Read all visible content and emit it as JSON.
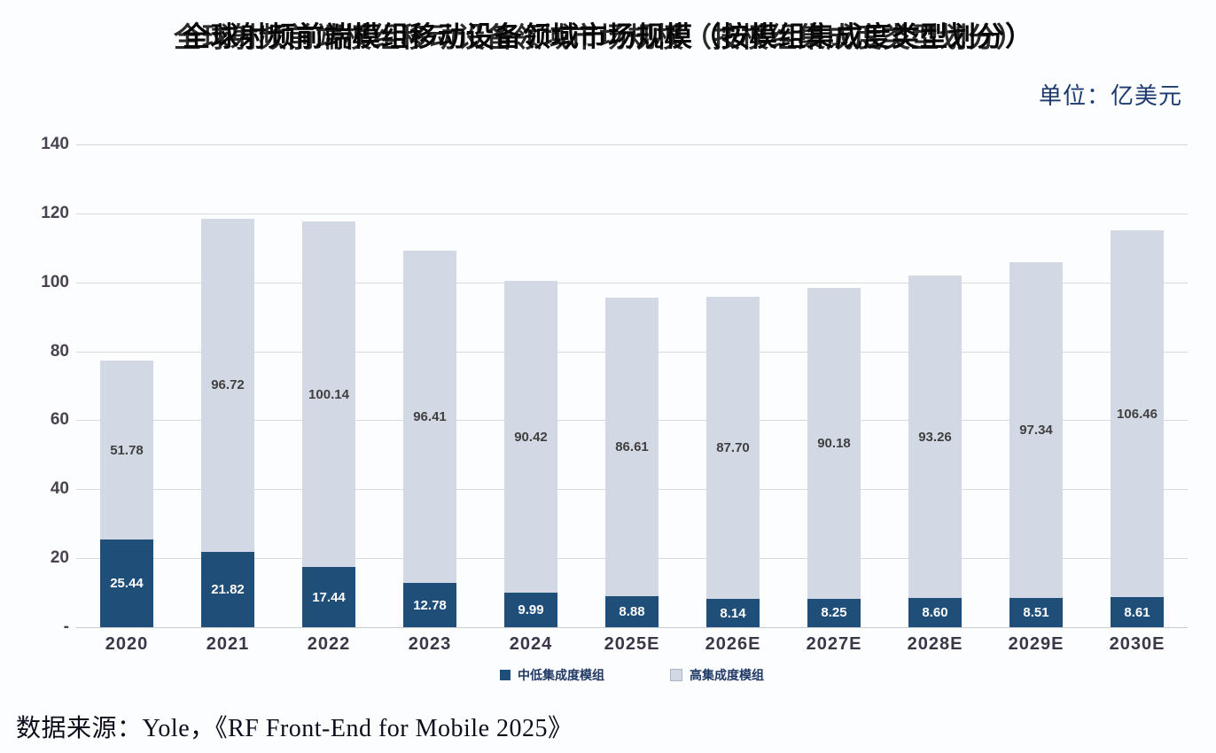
{
  "title": "全球射频前端模组移动设备领域市场规模（按模组集成度类型划分）",
  "unit_label": "单位：亿美元",
  "source_note": "数据来源：Yole，《RF Front-End for Mobile 2025》",
  "colors": {
    "background": "#FCFDFE",
    "dark_series": "#1F4E79",
    "light_series": "#D3D9E4",
    "gridline": "#D9D9D9",
    "axis_line": "#C6CAD1",
    "y_tick_text": "#48434F",
    "x_tick_text": "#3C3649",
    "legend_text": "#1F3864",
    "unit_text": "#1C3A6E",
    "title_text": "#060606"
  },
  "chart_data": {
    "type": "bar",
    "stacked": true,
    "title": "全球射频前端模组移动设备领域市场规模（按模组集成度类型划分）",
    "unit": "亿美元",
    "categories": [
      "2020",
      "2021",
      "2022",
      "2023",
      "2024",
      "2025E",
      "2026E",
      "2027E",
      "2028E",
      "2029E",
      "2030E"
    ],
    "series": [
      {
        "name": "中低集成度模组",
        "color": "#1F4E79",
        "label_color": "#FFFFFF",
        "values": [
          25.44,
          21.82,
          17.44,
          12.78,
          9.99,
          8.88,
          8.14,
          8.25,
          8.6,
          8.51,
          8.61
        ]
      },
      {
        "name": "高集成度模组",
        "color": "#D3D9E4",
        "label_color": "#404040",
        "values": [
          51.78,
          96.72,
          100.14,
          96.41,
          90.42,
          86.61,
          87.7,
          90.18,
          93.26,
          97.34,
          106.46
        ]
      }
    ],
    "ylim": [
      0,
      140
    ],
    "ytick_step": 20,
    "ytick_labels": [
      "-",
      "20",
      "40",
      "60",
      "80",
      "100",
      "120",
      "140"
    ],
    "grid": true,
    "legend_position": "bottom"
  }
}
